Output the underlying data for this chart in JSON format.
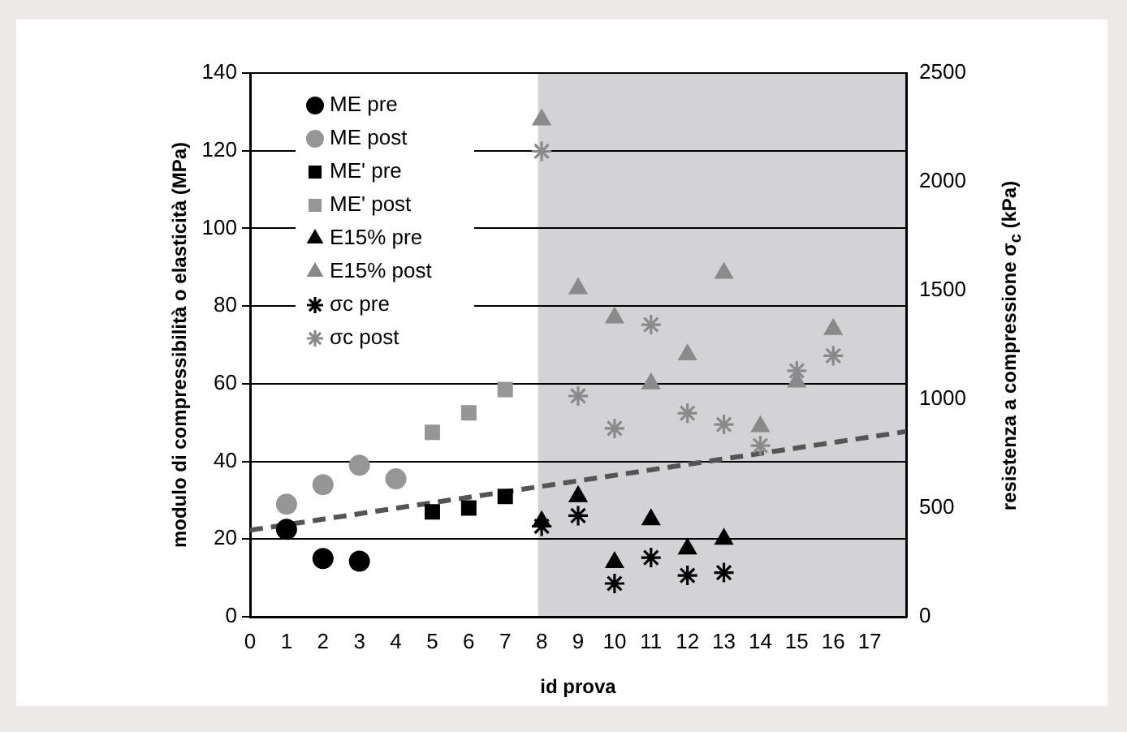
{
  "chart_data": {
    "type": "scatter",
    "xlabel": "id prova",
    "ylabel": "modulo di compressibilità o elasticità (MPa)",
    "y2label": "resistenza a compressione σ$_{c}$ (kPa)",
    "xlim": [
      0,
      18
    ],
    "xticks": [
      0,
      1,
      2,
      3,
      4,
      5,
      6,
      7,
      8,
      9,
      10,
      11,
      12,
      13,
      14,
      15,
      16,
      17
    ],
    "ylim": [
      0,
      140
    ],
    "yticks": [
      0,
      20,
      40,
      60,
      80,
      100,
      120,
      140
    ],
    "y2lim": [
      0,
      2500
    ],
    "y2ticks": [
      0,
      500,
      1000,
      1500,
      2000,
      2500
    ],
    "grid": "y",
    "legend": "top left",
    "bands": [
      {
        "axis": "x",
        "from": 7.9,
        "to": 18,
        "color": "#d3d3d5"
      }
    ],
    "series": [
      {
        "name": "ME pre",
        "color": "#000000",
        "marker": "circle",
        "x": [
          1,
          2,
          3
        ],
        "values": [
          22.5,
          15,
          14.3
        ]
      },
      {
        "name": "ME post",
        "color": "#969696",
        "marker": "circle",
        "x": [
          1,
          2,
          3,
          4
        ],
        "values": [
          29,
          34,
          39,
          35.5
        ]
      },
      {
        "name": "ME' pre",
        "color": "#000000",
        "marker": "square",
        "x": [
          5,
          6,
          7
        ],
        "values": [
          27,
          28,
          31
        ]
      },
      {
        "name": "ME' post",
        "color": "#969696",
        "marker": "square",
        "x": [
          5,
          6,
          7
        ],
        "values": [
          47.5,
          52.5,
          58.5
        ]
      },
      {
        "name": "E15% pre",
        "color": "#000000",
        "marker": "triangle",
        "x": [
          8,
          9,
          10,
          11,
          12,
          13
        ],
        "values": [
          24.5,
          31,
          14,
          25,
          17.5,
          20
        ]
      },
      {
        "name": "E15% post",
        "color": "#8a8a8a",
        "marker": "triangle",
        "x": [
          8,
          9,
          10,
          11,
          12,
          13,
          14,
          15,
          16
        ],
        "values": [
          128,
          84.5,
          77,
          60,
          67.5,
          88.5,
          49,
          60.5,
          74
        ]
      },
      {
        "name": "σc pre",
        "color": "#000000",
        "marker": "cross",
        "axis": "y2",
        "x": [
          8,
          9,
          10,
          11,
          12,
          13
        ],
        "values": [
          416,
          465,
          153,
          272,
          190,
          203
        ]
      },
      {
        "name": "σc post",
        "color": "#8a8a8a",
        "marker": "cross",
        "axis": "y2",
        "x": [
          8,
          9,
          10,
          11,
          12,
          13,
          14,
          15,
          16
        ],
        "values": [
          2140,
          1015,
          866,
          1343,
          936,
          884,
          787,
          1131,
          1200
        ]
      },
      {
        "type": "line",
        "color": "#555555",
        "marker": "none",
        "line_style": "dashed",
        "x": [
          0,
          18
        ],
        "values": [
          22.3,
          47.7
        ]
      }
    ]
  }
}
